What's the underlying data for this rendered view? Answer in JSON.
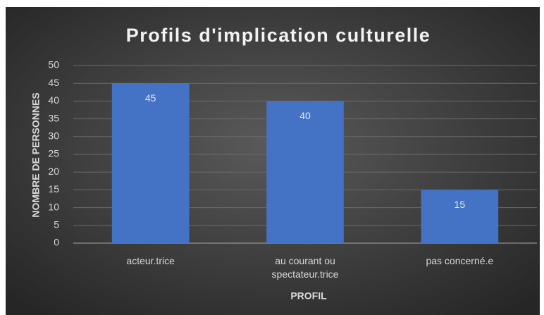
{
  "chart_data": {
    "type": "bar",
    "title": "Profils d'implication culturelle",
    "x_label": "PROFIL",
    "y_label": "NOMBRE DE PERSONNES",
    "categories": [
      "acteur.trice",
      "au courant ou spectateur.trice",
      "pas concerné.e"
    ],
    "values": [
      45,
      40,
      15
    ],
    "color": "#4472c4",
    "ylim": [
      0,
      50
    ],
    "yticks": [
      0,
      5,
      10,
      15,
      20,
      25,
      30,
      35,
      40,
      45,
      50
    ],
    "grid": true
  }
}
